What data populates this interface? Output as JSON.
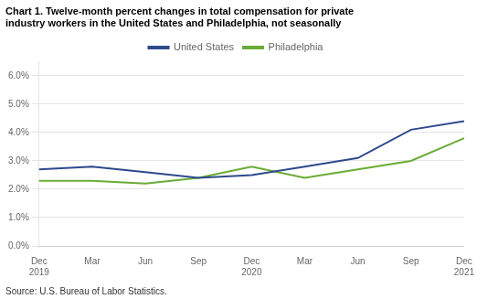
{
  "chart_data": {
    "type": "line",
    "title": [
      "Chart 1. Twelve-month percent changes in total compensation for private",
      "industry workers in the United States and Philadelphia, not seasonally"
    ],
    "annotations": [
      "Source: U.S. Bureau of Labor Statistics."
    ],
    "categories": [
      "Dec\n2019",
      "Mar",
      "Jun",
      "Sep",
      "Dec\n2020",
      "Mar",
      "Jun",
      "Sep",
      "Dec\n2021"
    ],
    "series": [
      {
        "name": "United States",
        "color": "#2E4A8C",
        "values": [
          0.027,
          0.028,
          0.026,
          0.024,
          0.025,
          0.028,
          0.031,
          0.041,
          0.044
        ]
      },
      {
        "name": "Philadelphia",
        "color": "#6AAC35",
        "values": [
          0.023,
          0.023,
          0.022,
          0.024,
          0.028,
          0.024,
          0.027,
          0.03,
          0.038
        ]
      }
    ],
    "ylim": [
      0.0,
      0.065
    ],
    "yticks": [
      {
        "value": 0.0,
        "label": "0.0%"
      },
      {
        "value": 0.01,
        "label": "1.0%"
      },
      {
        "value": 0.02,
        "label": "2.0%"
      },
      {
        "value": 0.03,
        "label": "3.0%"
      },
      {
        "value": 0.04,
        "label": "4.0%"
      },
      {
        "value": 0.05,
        "label": "5.0%"
      },
      {
        "value": 0.06,
        "label": "6.0%"
      }
    ],
    "grid": true,
    "legend": "top"
  }
}
